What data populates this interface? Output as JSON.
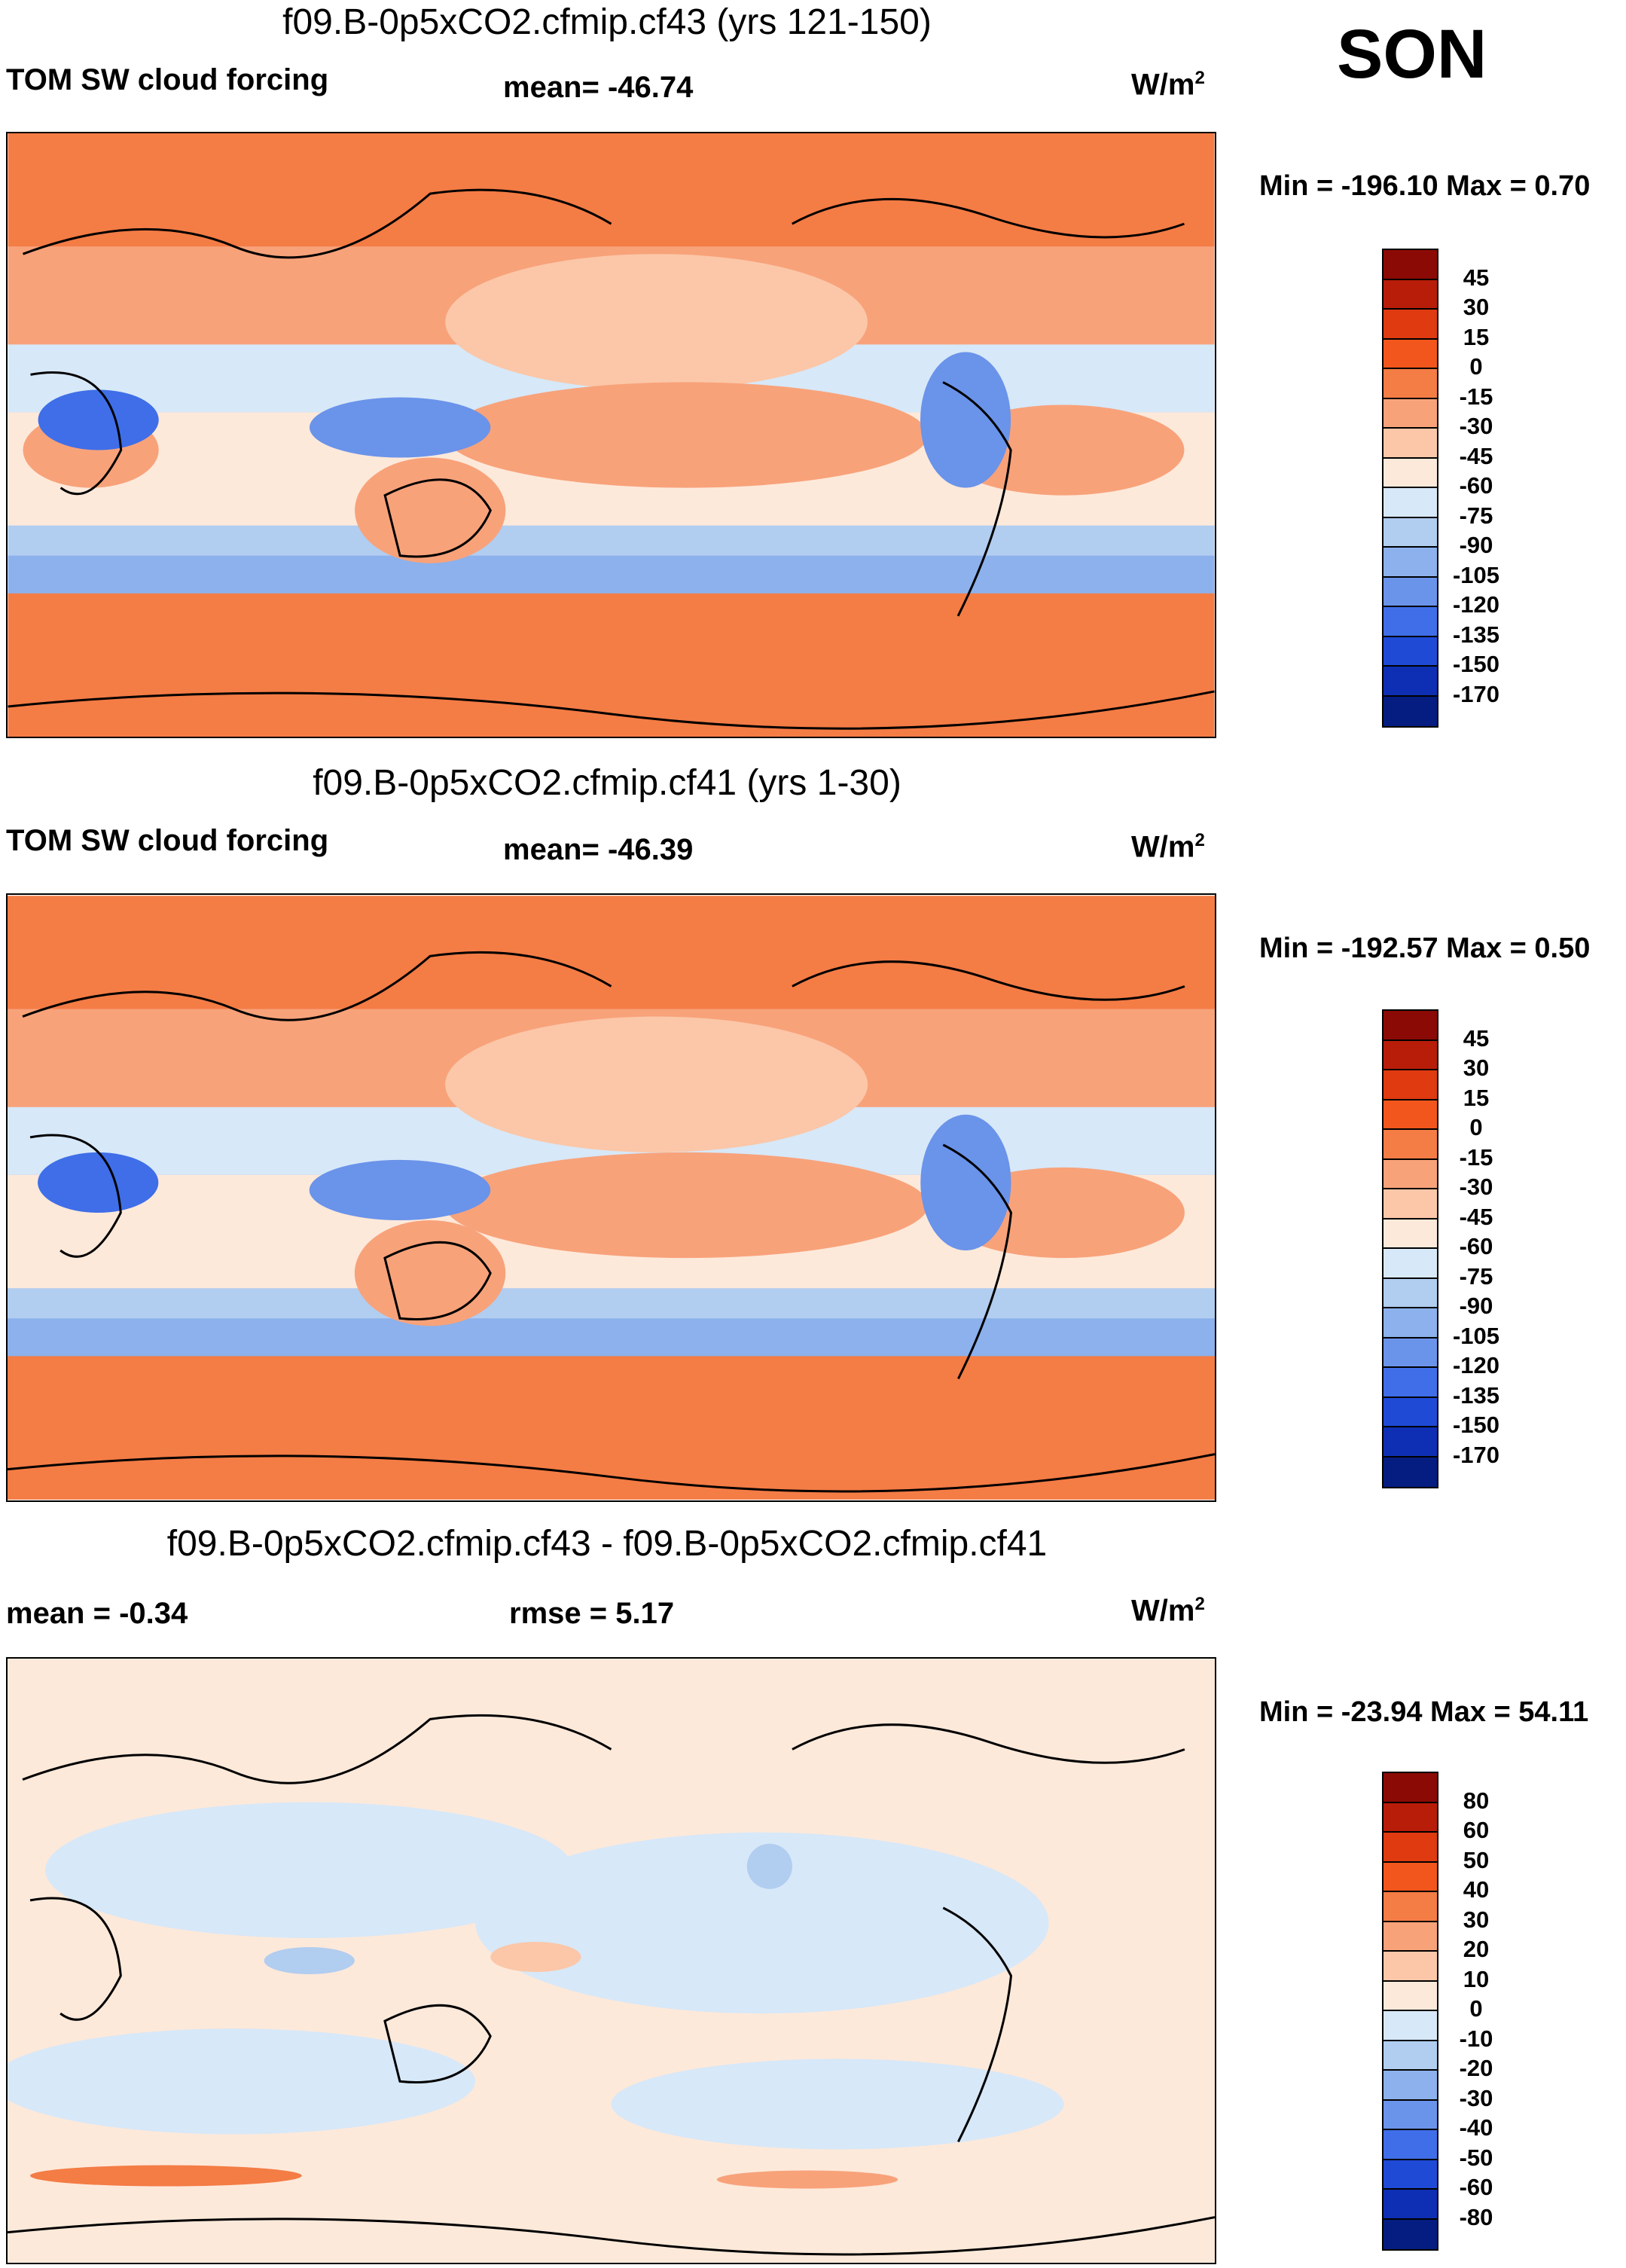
{
  "season": "SON",
  "units_main": "W/m",
  "units_sup": "2",
  "panels": [
    {
      "title": "f09.B-0p5xCO2.cfmip.cf43 (yrs 121-150)",
      "left_label": "TOM SW cloud forcing",
      "center_label": "mean= -46.74",
      "minmax": "Min = -196.10 Max =   0.70"
    },
    {
      "title": "f09.B-0p5xCO2.cfmip.cf41 (yrs 1-30)",
      "left_label": "TOM SW cloud forcing",
      "center_label": "mean= -46.39",
      "minmax": "Min = -192.57 Max =   0.50"
    },
    {
      "title": "f09.B-0p5xCO2.cfmip.cf43 - f09.B-0p5xCO2.cfmip.cf41",
      "left_label": "mean =  -0.34",
      "center_label": "rmse =   5.17",
      "minmax": "Min = -23.94 Max =  54.11"
    }
  ],
  "colorbar_main": {
    "levels": [
      "45",
      "30",
      "15",
      "0",
      "-15",
      "-30",
      "-45",
      "-60",
      "-75",
      "-90",
      "-105",
      "-120",
      "-135",
      "-150",
      "-170"
    ],
    "colors": [
      "#8b0a05",
      "#b81d0a",
      "#df3a10",
      "#f2561d",
      "#f47c45",
      "#f8a27a",
      "#fbc7a8",
      "#fde9da",
      "#d7e8f8",
      "#b1cdf0",
      "#8cb1ec",
      "#6a93ea",
      "#3f6ee8",
      "#1f4ad6",
      "#0e2fb3",
      "#051d80"
    ]
  },
  "colorbar_diff": {
    "levels": [
      "80",
      "60",
      "50",
      "40",
      "30",
      "20",
      "10",
      "0",
      "-10",
      "-20",
      "-30",
      "-40",
      "-50",
      "-60",
      "-80"
    ],
    "colors": [
      "#8b0a05",
      "#b81d0a",
      "#df3a10",
      "#f2561d",
      "#f47c45",
      "#f8a27a",
      "#fbc7a8",
      "#fde9da",
      "#d7e8f8",
      "#b1cdf0",
      "#8cb1ec",
      "#6a93ea",
      "#3f6ee8",
      "#1f4ad6",
      "#0e2fb3",
      "#051d80"
    ]
  }
}
